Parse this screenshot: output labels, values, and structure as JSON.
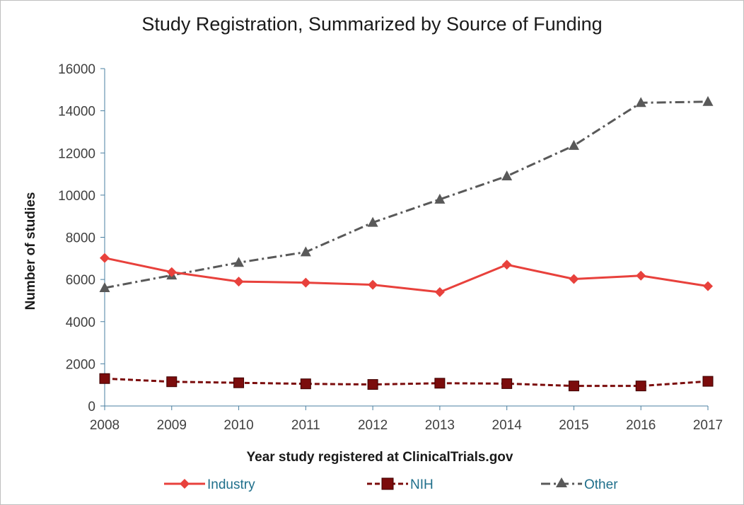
{
  "chart_data": {
    "type": "line",
    "title": "Study Registration, Summarized by Source of Funding",
    "xlabel": "Year study registered  at ClinicalTrials.gov",
    "ylabel": "Number of studies",
    "x": [
      2008,
      2009,
      2010,
      2011,
      2012,
      2013,
      2014,
      2015,
      2016,
      2017
    ],
    "xtick_labels": [
      "2008",
      "2009",
      "2010",
      "2011",
      "2012",
      "2013",
      "2014",
      "2015",
      "2016",
      "2017"
    ],
    "ylim": [
      0,
      16000
    ],
    "yticks": [
      0,
      2000,
      4000,
      6000,
      8000,
      10000,
      12000,
      14000,
      16000
    ],
    "ytick_labels": [
      "0",
      "2000",
      "4000",
      "6000",
      "8000",
      "10000",
      "12000",
      "14000",
      "16000"
    ],
    "grid": false,
    "legend_position": "bottom",
    "series": [
      {
        "name": "Industry",
        "values": [
          7020,
          6350,
          5900,
          5850,
          5750,
          5400,
          6700,
          6020,
          6180,
          5680
        ],
        "color": "#e8413c",
        "marker": "diamond",
        "line_style": "solid"
      },
      {
        "name": "NIH",
        "values": [
          1300,
          1150,
          1100,
          1050,
          1020,
          1080,
          1060,
          950,
          950,
          1170
        ],
        "color": "#7b0c0c",
        "marker": "square",
        "line_style": "dashed"
      },
      {
        "name": "Other",
        "values": [
          5600,
          6200,
          6800,
          7300,
          8700,
          9800,
          10900,
          12350,
          14380,
          14430
        ],
        "color": "#595959",
        "marker": "triangle",
        "line_style": "dash-dot"
      }
    ]
  },
  "legend": {
    "items": [
      {
        "label": "Industry",
        "text_color": "#1f6f8b"
      },
      {
        "label": "NIH",
        "text_color": "#1f6f8b"
      },
      {
        "label": "Other",
        "text_color": "#1f6f8b"
      }
    ]
  }
}
